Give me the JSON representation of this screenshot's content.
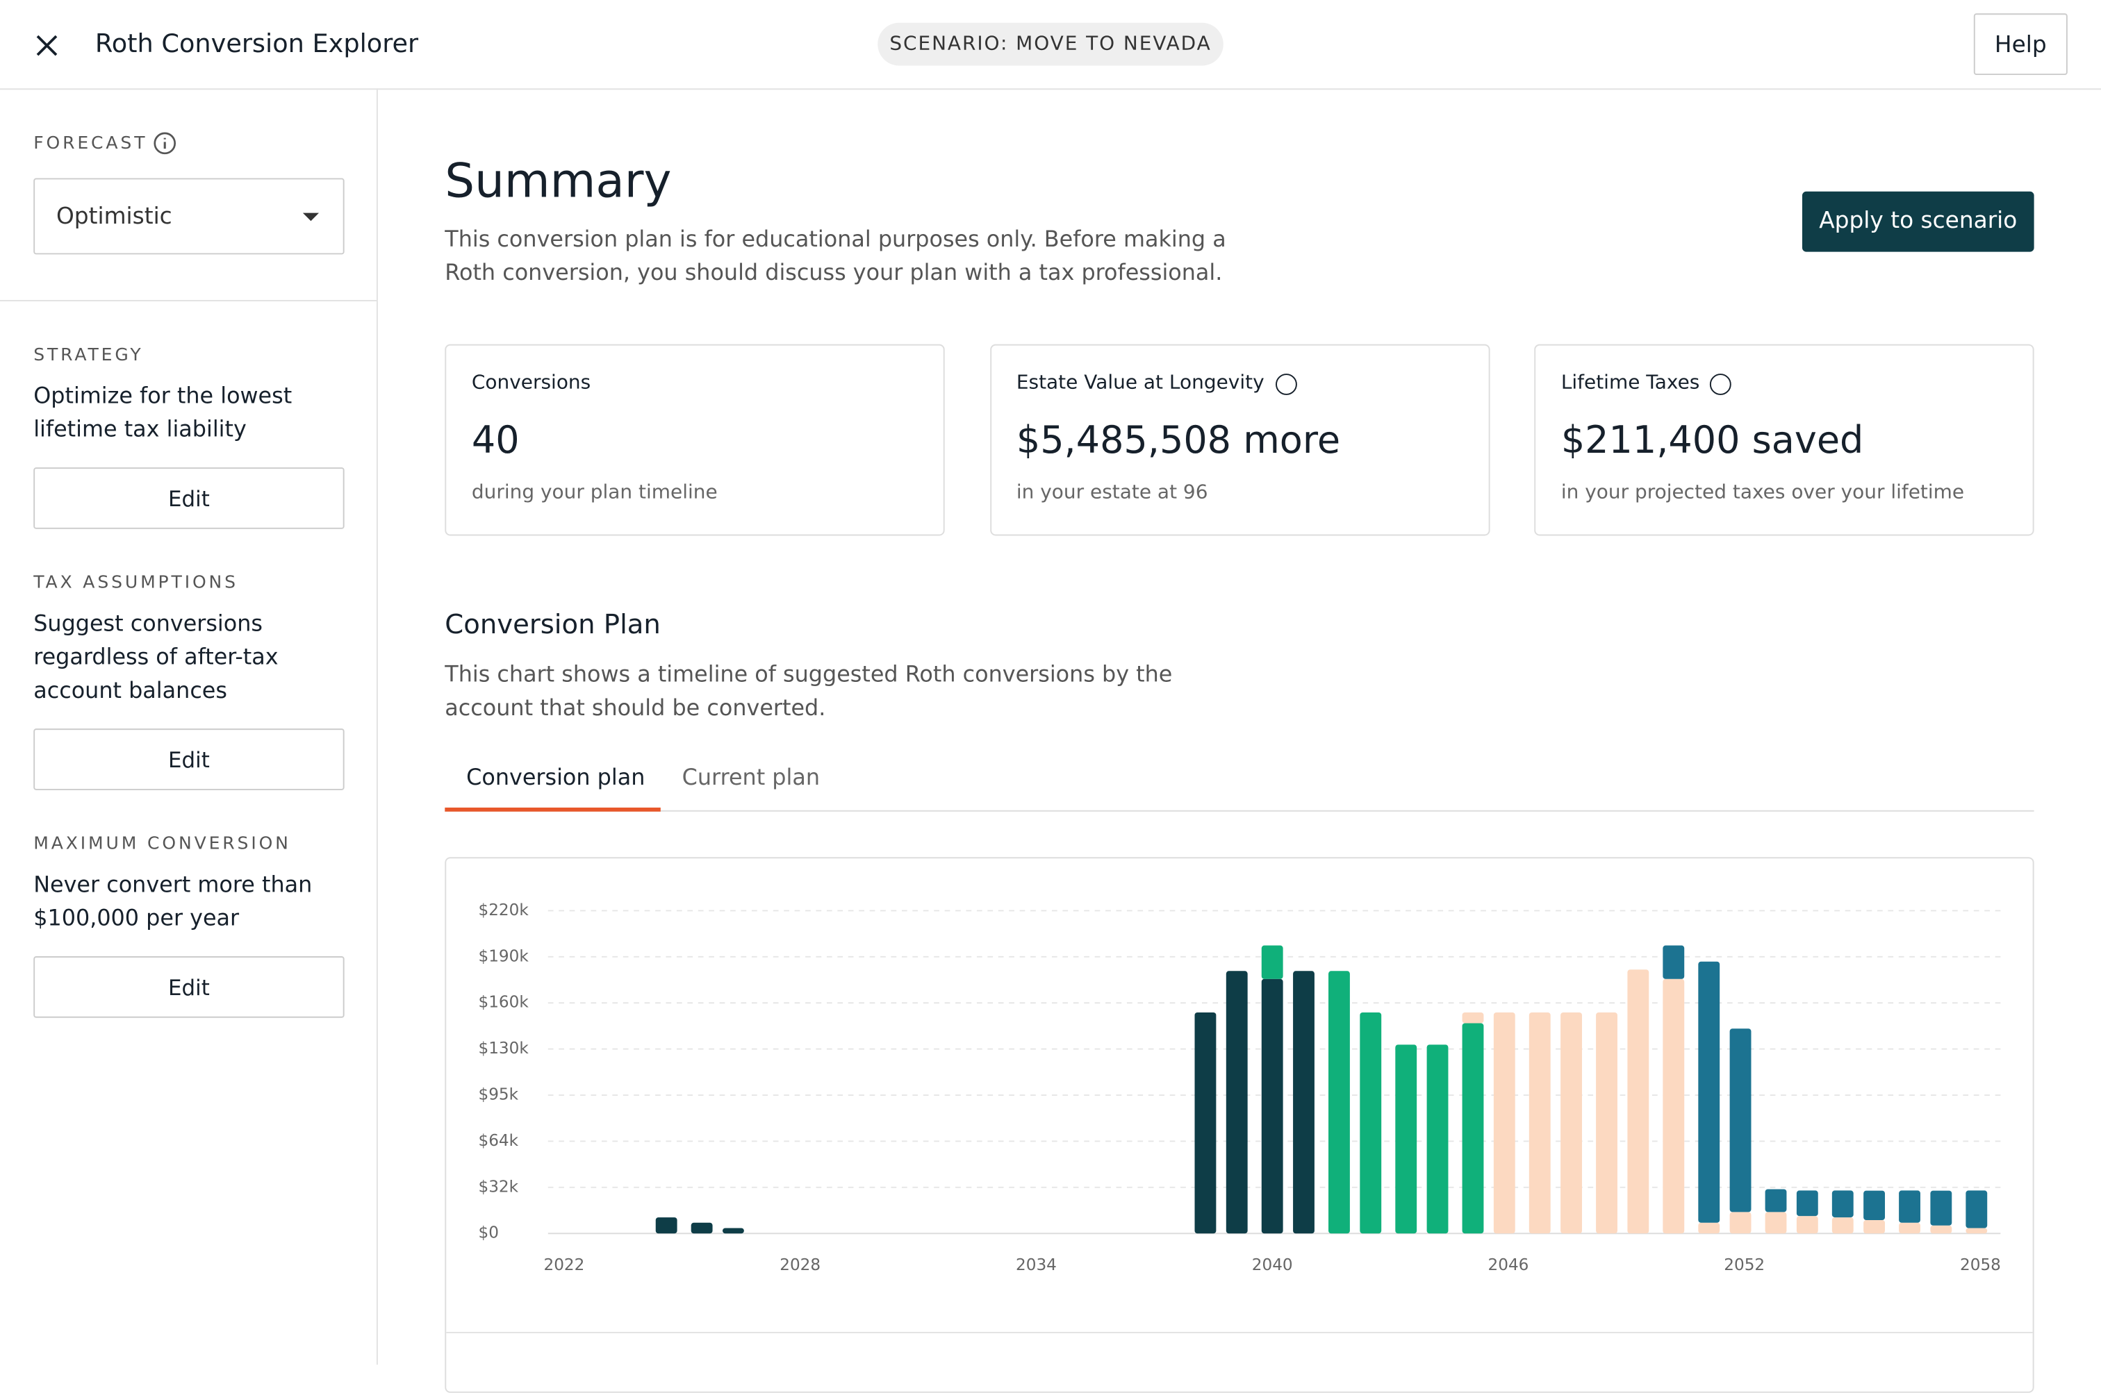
{
  "header": {
    "title": "Roth Conversion Explorer",
    "scenario": "SCENARIO: MOVE TO NEVADA",
    "help": "Help"
  },
  "sidebar": {
    "forecast_label": "FORECAST",
    "forecast_value": "Optimistic",
    "sections": [
      {
        "label": "STRATEGY",
        "text": "Optimize for the lowest lifetime tax liability",
        "button": "Edit"
      },
      {
        "label": "TAX ASSUMPTIONS",
        "text": "Suggest conversions regardless of after-tax account balances",
        "button": "Edit"
      },
      {
        "label": "MAXIMUM CONVERSION",
        "text": "Never convert more than $100,000 per year",
        "button": "Edit"
      }
    ]
  },
  "summary": {
    "title": "Summary",
    "text": "This conversion plan is for educational purposes only. Before making a Roth conversion, you should discuss your plan with a tax professional.",
    "button": "Apply to scenario",
    "cards": [
      {
        "label": "Conversions",
        "value": "40",
        "note": "during your plan timeline"
      },
      {
        "label": "Estate Value at Longevity",
        "value": "$5,485,508 more",
        "note": "in your estate at 96"
      },
      {
        "label": "Lifetime Taxes",
        "value": "$211,400 saved",
        "note": "in your projected taxes over your lifetime"
      }
    ]
  },
  "plan": {
    "title": "Conversion Plan",
    "text": "This chart shows a timeline of suggested Roth conversions by the account that should be converted.",
    "tabs": [
      "Conversion plan",
      "Current plan"
    ]
  },
  "chart_data": {
    "type": "stacked-bar",
    "x": [
      2024.6,
      2025.5,
      2026.3,
      2038.3,
      2039.1,
      2040.0,
      2040.8,
      2041.7,
      2042.5,
      2043.4,
      2044.2,
      2045.1,
      2045.9,
      2046.8,
      2047.6,
      2048.5,
      2049.3,
      2050.2,
      2051.1,
      2051.9,
      2052.8,
      2053.6,
      2054.5,
      2055.3,
      2056.2,
      2057.0,
      2057.9
    ],
    "series": [
      {
        "color": "#0e3d47",
        "values": [
          11100,
          7400,
          3700,
          152400,
          181000,
          175500,
          181000,
          null,
          null,
          null,
          null,
          null,
          null,
          null,
          null,
          null,
          null,
          null,
          null,
          null,
          null,
          null,
          null,
          null,
          null,
          null,
          null
        ]
      },
      {
        "color": "#10b07a",
        "values": [
          null,
          null,
          null,
          null,
          null,
          23100,
          null,
          181000,
          152400,
          130200,
          130200,
          145000,
          null,
          null,
          null,
          null,
          null,
          null,
          null,
          null,
          null,
          null,
          null,
          null,
          null,
          null,
          null
        ]
      },
      {
        "color": "#fcd9c1",
        "values": [
          null,
          null,
          null,
          null,
          null,
          null,
          null,
          null,
          null,
          null,
          null,
          7400,
          152400,
          152400,
          152400,
          152400,
          182000,
          175500,
          7400,
          14800,
          14800,
          12000,
          11100,
          9200,
          7400,
          5500,
          3700
        ]
      },
      {
        "color": "#1c7391",
        "values": [
          null,
          null,
          null,
          null,
          null,
          null,
          null,
          null,
          null,
          null,
          null,
          null,
          null,
          null,
          null,
          null,
          null,
          23100,
          180100,
          126500,
          15700,
          17600,
          18500,
          20300,
          22200,
          24000,
          25900
        ]
      }
    ],
    "xlim": [
      2022,
      2058
    ],
    "xticks": [
      2022,
      2028,
      2034,
      2040,
      2046,
      2052,
      2058
    ],
    "ylim": [
      0,
      222600
    ],
    "yticks": [
      {
        "value": 0,
        "label": "$0"
      },
      {
        "value": 31800,
        "label": "$32k"
      },
      {
        "value": 63600,
        "label": "$64k"
      },
      {
        "value": 95400,
        "label": "$95k"
      },
      {
        "value": 127200,
        "label": "$130k"
      },
      {
        "value": 159000,
        "label": "$160k"
      },
      {
        "value": 190800,
        "label": "$190k"
      },
      {
        "value": 222600,
        "label": "$220k"
      }
    ],
    "grid": true
  }
}
